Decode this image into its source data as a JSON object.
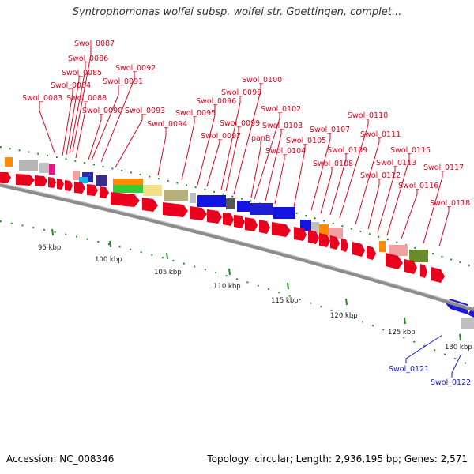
{
  "title": "Syntrophomonas wolfei subsp. wolfei str. Goettingen, complet...",
  "footer": {
    "accession": "Accession: NC_008346",
    "summary": "Topology: circular; Length: 2,936,195 bp; Genes: 2,571"
  },
  "colors": {
    "label_forward": "#e8001c",
    "label_reverse": "#1a1adc",
    "backbone": "#7f7f7f",
    "tick": "#1f8f1f",
    "forward_arrow": "#e8001c",
    "reverse_arrow": "#1b1bd6"
  },
  "gene_labels_forward": [
    "Swol_0087",
    "Swol_0086",
    "Swol_0085",
    "Swol_0084",
    "Swol_0083",
    "Swol_0088",
    "Swol_0092",
    "Swol_0091",
    "Swol_0090",
    "Swol_0093",
    "Swol_0094",
    "Swol_0095",
    "Swol_0096",
    "Swol_0097",
    "Swol_0098",
    "Swol_0099",
    "Swol_0100",
    "Swol_0102",
    "Swol_0103",
    "panB",
    "Swol_0104",
    "Swol_0105",
    "Swol_0107",
    "Swol_0108",
    "Swol_0109",
    "Swol_0110",
    "Swol_0111",
    "Swol_0112",
    "Swol_0113",
    "Swol_0115",
    "Swol_0116",
    "Swol_0117",
    "Swol_0118"
  ],
  "gene_labels_reverse": [
    "Swol_0121",
    "Swol_0122"
  ],
  "scale_labels": [
    "95 kbp",
    "100 kbp",
    "105 kbp",
    "110 kbp",
    "115 kbp",
    "120 kbp",
    "125 kbp",
    "130 kbp"
  ]
}
